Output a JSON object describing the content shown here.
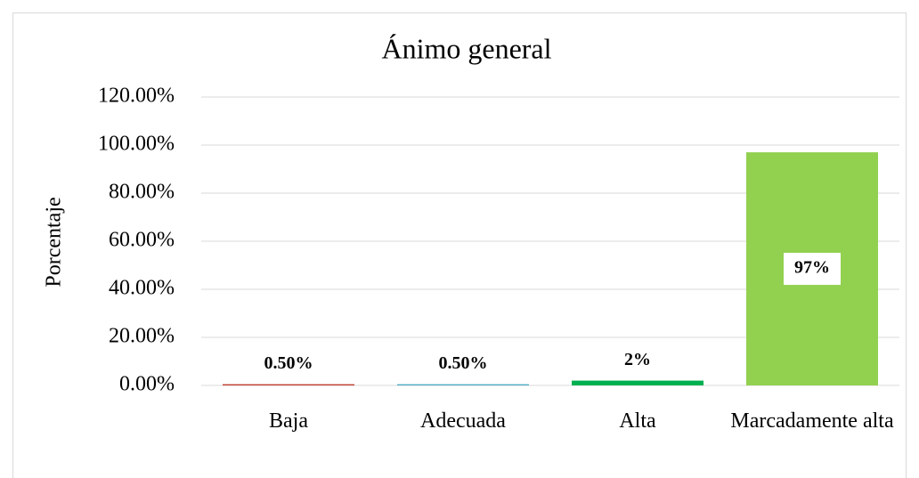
{
  "chart_data": {
    "type": "bar",
    "title": "Ánimo general",
    "y_label": "Porcentaje",
    "categories": [
      "Baja",
      "Adecuada",
      "Alta",
      "Marcadamente alta"
    ],
    "values": [
      0.5,
      0.5,
      2,
      97
    ],
    "value_labels": [
      "0.50%",
      "0.50%",
      "2%",
      "97%"
    ],
    "colors": [
      "#c0392b",
      "#4bacc6",
      "#00b050",
      "#92d050"
    ],
    "ylim": [
      0,
      120
    ],
    "yticks": [
      {
        "value": 0,
        "label": "0.00%"
      },
      {
        "value": 20,
        "label": "20.00%"
      },
      {
        "value": 40,
        "label": "40.00%"
      },
      {
        "value": 60,
        "label": "60.00%"
      },
      {
        "value": 80,
        "label": "80.00%"
      },
      {
        "value": 100,
        "label": "100.00%"
      },
      {
        "value": 120,
        "label": "120.00%"
      }
    ],
    "grid": true
  }
}
